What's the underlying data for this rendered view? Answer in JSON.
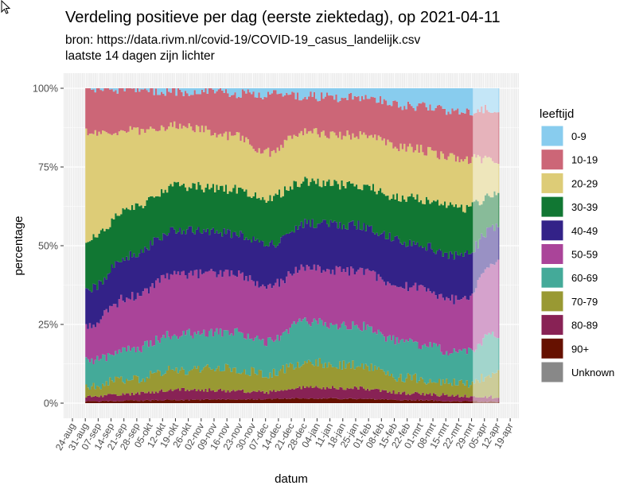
{
  "chart_data": {
    "type": "area",
    "stacking": "percent",
    "title": "Verdeling positieve per dag (eerste ziektedag), op 2021-04-11",
    "subtitle_lines": [
      "bron: https://data.rivm.nl/covid-19/COVID-19_casus_landelijk.csv",
      "laatste 14 dagen zijn lichter"
    ],
    "xlabel": "datum",
    "ylabel": "percentage",
    "ylim": [
      0,
      100
    ],
    "y_ticks": [
      "0%",
      "25%",
      "50%",
      "75%",
      "100%"
    ],
    "y_tick_values": [
      0,
      25,
      50,
      75,
      100
    ],
    "x_ticks": [
      "24-aug",
      "31-aug",
      "07-sep",
      "14-sep",
      "21-sep",
      "28-sep",
      "05-okt",
      "12-okt",
      "19-okt",
      "26-okt",
      "02-nov",
      "09-nov",
      "16-nov",
      "23-nov",
      "30-nov",
      "07-dec",
      "14-dec",
      "21-dec",
      "28-dec",
      "04-jan",
      "11-jan",
      "18-jan",
      "25-jan",
      "01-feb",
      "08-feb",
      "15-feb",
      "22-feb",
      "01-mrt",
      "08-mrt",
      "15-mrt",
      "22-mrt",
      "29-mrt",
      "05-apr",
      "12-apr",
      "19-apr"
    ],
    "x_range_weeks": [
      0,
      34
    ],
    "data_start_week": 1,
    "data_end_week": 33.1,
    "light_start_week": 31.1,
    "legend_title": "leeftijd",
    "legend_position": "right",
    "grid": true,
    "series_names": [
      "0-9",
      "10-19",
      "20-29",
      "30-39",
      "40-49",
      "50-59",
      "60-69",
      "70-79",
      "80-89",
      "90+",
      "Unknown"
    ],
    "colors": {
      "0-9": "#88ccee",
      "10-19": "#cc6677",
      "20-29": "#ddcc77",
      "30-39": "#117733",
      "40-49": "#332288",
      "50-59": "#aa4499",
      "60-69": "#44aa99",
      "70-79": "#999933",
      "80-89": "#882255",
      "90+": "#661100",
      "Unknown": "#888888"
    },
    "anchor_weeks": [
      1,
      4.5,
      8,
      12.5,
      15,
      18,
      22,
      26,
      30.3,
      32.8
    ],
    "cumulative_upper_bounds_pct": {
      "90+": [
        0.5,
        0.8,
        1.0,
        1.2,
        1.3,
        1.5,
        1.4,
        1.0,
        0.6,
        0.5
      ],
      "80-89": [
        2.0,
        3.0,
        4.3,
        4.0,
        3.5,
        5.0,
        4.8,
        3.2,
        2.3,
        2.0
      ],
      "70-79": [
        5.5,
        7.5,
        10.6,
        11.0,
        9.3,
        13.0,
        12.0,
        8.0,
        6.3,
        9.3
      ],
      "60-69": [
        13.0,
        17.0,
        22.0,
        22.5,
        19.5,
        25.8,
        24.5,
        19.0,
        16.0,
        22.0
      ],
      "50-59": [
        24.5,
        34.0,
        41.0,
        41.5,
        37.0,
        42.7,
        42.0,
        37.0,
        32.6,
        44.7
      ],
      "40-49": [
        36.0,
        47.0,
        55.0,
        54.0,
        50.0,
        57.0,
        56.5,
        51.0,
        46.7,
        56.0
      ],
      "30-39": [
        52.0,
        62.0,
        69.0,
        68.0,
        65.0,
        70.5,
        69.0,
        65.0,
        62.0,
        66.0
      ],
      "20-29": [
        86.0,
        86.5,
        88.0,
        85.0,
        79.5,
        86.0,
        85.0,
        81.0,
        77.5,
        77.5
      ],
      "10-19": [
        99.5,
        99.5,
        99.0,
        98.5,
        98.0,
        97.5,
        97.0,
        94.5,
        92.5,
        93.5
      ],
      "0-9": [
        100,
        100,
        100,
        100,
        100,
        100,
        100,
        100,
        100,
        100
      ]
    }
  }
}
